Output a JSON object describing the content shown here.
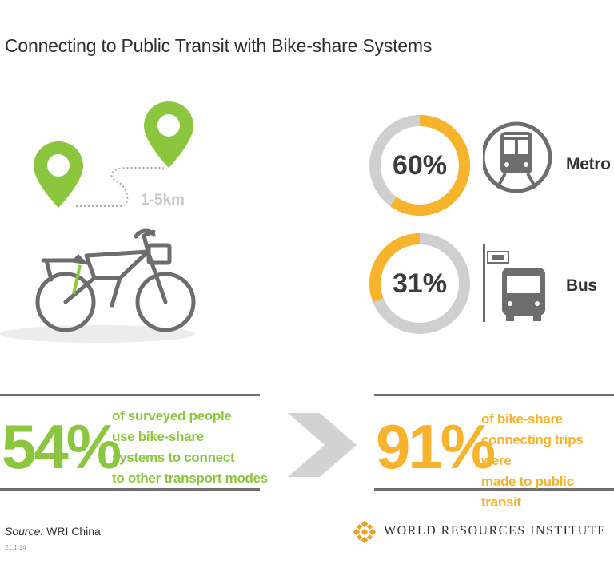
{
  "title": "Connecting to Public Transit with Bike-share Systems",
  "distance_label": "1-5km",
  "colors": {
    "green": "#8cc63f",
    "yellow": "#f7b32b",
    "ring_gray": "#cfcfcf",
    "icon_gray": "#6d6d6d",
    "text_dark": "#333333"
  },
  "modes": [
    {
      "percent_label": "60%",
      "percent": 60,
      "label": "Metro",
      "icon": "metro-train-icon"
    },
    {
      "percent_label": "31%",
      "percent": 31,
      "label": "Bus",
      "icon": "bus-stop-icon"
    }
  ],
  "stats": [
    {
      "value": "54%",
      "lines": [
        "of surveyed people",
        "use bike-share",
        "systems to connect",
        "to other transport modes"
      ]
    },
    {
      "value": "91%",
      "lines": [
        "of bike-share",
        "connecting trips were",
        "made to public transit"
      ]
    }
  ],
  "source": {
    "prefix": "Source:",
    "text": " WRI China"
  },
  "code": "21.1.14",
  "organization": "WORLD RESOURCES INSTITUTE"
}
